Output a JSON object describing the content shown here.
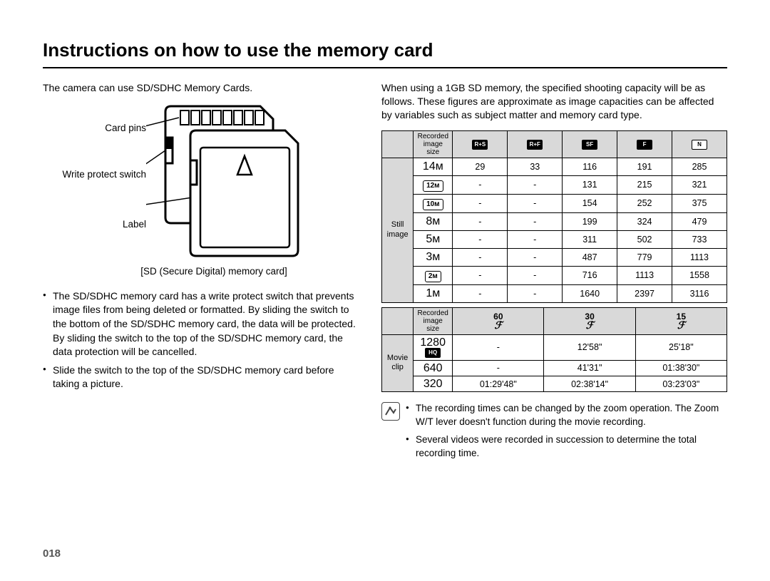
{
  "title": "Instructions on how to use the memory card",
  "page_number": "018",
  "left": {
    "intro": "The camera can use SD/SDHC Memory Cards.",
    "labels": {
      "pins": "Card pins",
      "switch": "Write protect switch",
      "label": "Label"
    },
    "caption": "[SD (Secure Digital) memory card]",
    "bullets": [
      "The SD/SDHC memory card has a write protect switch that prevents image files from being deleted or formatted. By sliding the switch to the bottom of the SD/SDHC memory card, the data will be protected. By sliding the switch to the top of the SD/SDHC memory card, the data protection will be cancelled.",
      "Slide the switch to the top of the SD/SDHC memory card before taking a picture."
    ]
  },
  "right": {
    "intro": "When using a 1GB SD memory, the specified shooting capacity will be as follows. These figures are approximate as image capacities can be affected by variables such as subject matter and memory card type.",
    "still": {
      "header_label": "Recorded image size",
      "cat_label": "Still image",
      "quality_headers": [
        "RAW+SF",
        "RAW+F",
        "SF",
        "F",
        "N"
      ],
      "sizes": [
        "14ᴍ",
        "12ᴍ",
        "10ᴍ",
        "8ᴍ",
        "5ᴍ",
        "3ᴍ",
        "2ᴍ",
        "1ᴍ"
      ],
      "boxed": [
        false,
        true,
        true,
        false,
        false,
        false,
        true,
        false
      ],
      "rows": [
        [
          "29",
          "33",
          "116",
          "191",
          "285"
        ],
        [
          "-",
          "-",
          "131",
          "215",
          "321"
        ],
        [
          "-",
          "-",
          "154",
          "252",
          "375"
        ],
        [
          "-",
          "-",
          "199",
          "324",
          "479"
        ],
        [
          "-",
          "-",
          "311",
          "502",
          "733"
        ],
        [
          "-",
          "-",
          "487",
          "779",
          "1113"
        ],
        [
          "-",
          "-",
          "716",
          "1113",
          "1558"
        ],
        [
          "-",
          "-",
          "1640",
          "2397",
          "3116"
        ]
      ]
    },
    "movie": {
      "header_label": "Recorded image size",
      "cat_label": "Movie clip",
      "fps_headers": [
        "60",
        "30",
        "15"
      ],
      "sizes": [
        "1280",
        "640",
        "320"
      ],
      "hd_badge": "HQ",
      "rows": [
        [
          "-",
          "12'58\"",
          "25'18\""
        ],
        [
          "-",
          "41'31\"",
          "01:38'30\""
        ],
        [
          "01:29'48\"",
          "02:38'14\"",
          "03:23'03\""
        ]
      ]
    },
    "notes": [
      "The recording times can be changed by the zoom operation. The Zoom W/T lever doesn't function during the movie recording.",
      "Several videos were recorded in succession to determine the total recording time."
    ]
  }
}
